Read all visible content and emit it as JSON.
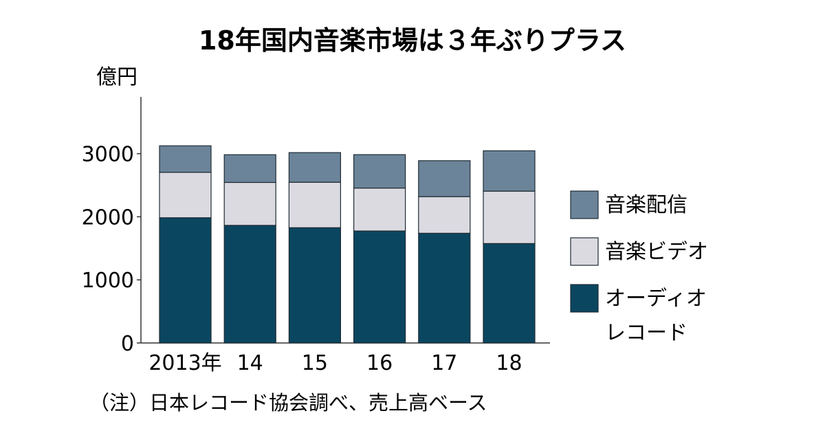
{
  "chart_data": {
    "type": "bar",
    "stacked": true,
    "title": "18年国内音楽市場は３年ぶりプラス",
    "ylabel": "億円",
    "ylim": [
      0,
      3900
    ],
    "yticks": [
      0,
      1000,
      2000,
      3000
    ],
    "categories": [
      "2013年",
      "14",
      "15",
      "16",
      "17",
      "18"
    ],
    "series": [
      {
        "name": "オーディオレコード",
        "legend_lines": [
          "オーディオ",
          "レコード"
        ],
        "color": "#0b4660",
        "values": [
          1985,
          1864,
          1827,
          1775,
          1739,
          1576
        ]
      },
      {
        "name": "音楽ビデオ",
        "legend_lines": [
          "音楽ビデオ"
        ],
        "color": "#dcdae1",
        "values": [
          720,
          680,
          720,
          680,
          580,
          830
        ]
      },
      {
        "name": "音楽配信",
        "legend_lines": [
          "音楽配信"
        ],
        "color": "#6b8499",
        "values": [
          420,
          440,
          470,
          530,
          570,
          640
        ]
      }
    ],
    "legend_position": "right",
    "grid": false,
    "note": "（注）日本レコード協会調べ、売上高ベース"
  }
}
